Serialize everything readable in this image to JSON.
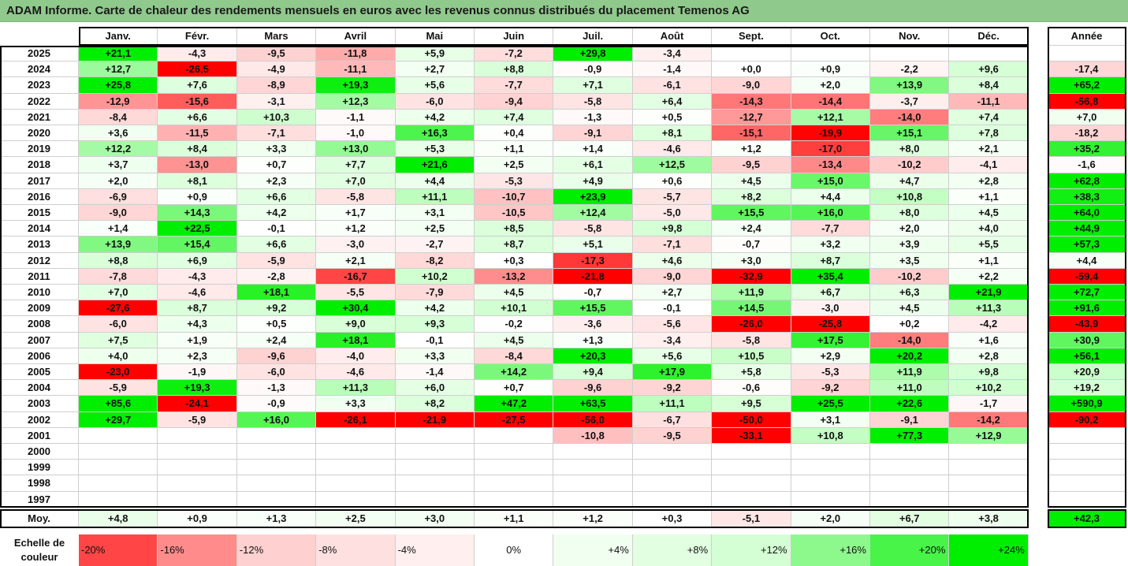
{
  "title": "ADAM Informe. Carte de chaleur des rendements mensuels en euros avec les revenus connus distribués du placement Temenos AG",
  "chart_data": {
    "type": "heatmap",
    "title": "ADAM Informe. Carte de chaleur des rendements mensuels en euros avec les revenus connus distribués du placement Temenos AG",
    "columns": [
      "Janv.",
      "Févr.",
      "Mars",
      "Avril",
      "Mai",
      "Juin",
      "Juil.",
      "Août",
      "Sept.",
      "Oct.",
      "Nov.",
      "Déc."
    ],
    "year_header": "Année",
    "rows": [
      {
        "year": "2025",
        "months": [
          "+21,1",
          "-4,3",
          "-9,5",
          "-11,8",
          "+5,9",
          "-7,2",
          "+29,8",
          "-3,4",
          "",
          "",
          "",
          ""
        ],
        "annual": ""
      },
      {
        "year": "2024",
        "months": [
          "+12,7",
          "-26,5",
          "-4,9",
          "-11,1",
          "+2,7",
          "+8,8",
          "-0,9",
          "-1,4",
          "+0,0",
          "+0,9",
          "-2,2",
          "+9,6"
        ],
        "annual": "-17,4"
      },
      {
        "year": "2023",
        "months": [
          "+25,8",
          "+7,6",
          "-8,9",
          "+19,3",
          "+5,6",
          "-7,7",
          "+7,1",
          "-6,1",
          "-9,0",
          "+2,0",
          "+13,9",
          "+8,4"
        ],
        "annual": "+65,2"
      },
      {
        "year": "2022",
        "months": [
          "-12,9",
          "-15,6",
          "-3,1",
          "+12,3",
          "-6,0",
          "-9,4",
          "-5,8",
          "+6,4",
          "-14,3",
          "-14,4",
          "-3,7",
          "-11,1"
        ],
        "annual": "-56,8"
      },
      {
        "year": "2021",
        "months": [
          "-8,4",
          "+6,6",
          "+10,3",
          "-1,1",
          "+4,2",
          "+7,4",
          "-1,3",
          "+0,5",
          "-12,7",
          "+12,1",
          "-14,0",
          "+7,4"
        ],
        "annual": "+7,0"
      },
      {
        "year": "2020",
        "months": [
          "+3,6",
          "-11,5",
          "-7,1",
          "-1,0",
          "+16,3",
          "+0,4",
          "-9,1",
          "+8,1",
          "-15,1",
          "-19,9",
          "+15,1",
          "+7,8"
        ],
        "annual": "-18,2"
      },
      {
        "year": "2019",
        "months": [
          "+12,2",
          "+8,4",
          "+3,3",
          "+13,0",
          "+5,3",
          "+1,1",
          "+1,4",
          "-4,6",
          "+1,2",
          "-17,0",
          "+8,0",
          "+2,1"
        ],
        "annual": "+35,2"
      },
      {
        "year": "2018",
        "months": [
          "+3,7",
          "-13,0",
          "+0,7",
          "+7,7",
          "+21,6",
          "+2,5",
          "+6,1",
          "+12,5",
          "-9,5",
          "-13,4",
          "-10,2",
          "-4,1"
        ],
        "annual": "-1,6"
      },
      {
        "year": "2017",
        "months": [
          "+2,0",
          "+8,1",
          "+2,3",
          "+7,0",
          "+4,4",
          "-5,3",
          "+4,9",
          "+0,6",
          "+4,5",
          "+15,0",
          "+4,7",
          "+2,8"
        ],
        "annual": "+62,8"
      },
      {
        "year": "2016",
        "months": [
          "-6,9",
          "+0,9",
          "+6,6",
          "-5,8",
          "+11,1",
          "-10,7",
          "+23,9",
          "-5,7",
          "+8,2",
          "+4,4",
          "+10,8",
          "+1,1"
        ],
        "annual": "+38,3"
      },
      {
        "year": "2015",
        "months": [
          "-9,0",
          "+14,3",
          "+4,2",
          "+1,7",
          "+3,1",
          "-10,5",
          "+12,4",
          "-5,0",
          "+15,5",
          "+16,0",
          "+8,0",
          "+4,5"
        ],
        "annual": "+64,0"
      },
      {
        "year": "2014",
        "months": [
          "+1,4",
          "+22,5",
          "-0,1",
          "+1,2",
          "+2,5",
          "+8,5",
          "-5,8",
          "+9,8",
          "+2,4",
          "-7,7",
          "+2,0",
          "+4,0"
        ],
        "annual": "+44,9"
      },
      {
        "year": "2013",
        "months": [
          "+13,9",
          "+15,4",
          "+6,6",
          "-3,0",
          "-2,7",
          "+8,7",
          "+5,1",
          "-7,1",
          "-0,7",
          "+3,2",
          "+3,9",
          "+5,5"
        ],
        "annual": "+57,3"
      },
      {
        "year": "2012",
        "months": [
          "+8,8",
          "+6,9",
          "-5,9",
          "+2,1",
          "-8,2",
          "+0,3",
          "-17,3",
          "+4,6",
          "+3,0",
          "+8,7",
          "+3,5",
          "+1,1"
        ],
        "annual": "+4,4"
      },
      {
        "year": "2011",
        "months": [
          "-7,8",
          "-4,3",
          "-2,8",
          "-16,7",
          "+10,2",
          "-13,2",
          "-21,8",
          "-9,0",
          "-32,9",
          "+35,4",
          "-10,2",
          "+2,2"
        ],
        "annual": "-59,4"
      },
      {
        "year": "2010",
        "months": [
          "+7,0",
          "-4,6",
          "+18,1",
          "-5,5",
          "-7,9",
          "+4,5",
          "-0,7",
          "+2,7",
          "+11,9",
          "+6,7",
          "+6,3",
          "+21,9"
        ],
        "annual": "+72,7"
      },
      {
        "year": "2009",
        "months": [
          "-27,6",
          "+8,7",
          "+9,2",
          "+30,4",
          "+4,2",
          "+10,1",
          "+15,5",
          "-0,1",
          "+14,5",
          "-3,0",
          "+4,5",
          "+11,3"
        ],
        "annual": "+91,6"
      },
      {
        "year": "2008",
        "months": [
          "-6,0",
          "+4,3",
          "+0,5",
          "+9,0",
          "+9,3",
          "-0,2",
          "-3,6",
          "-5,6",
          "-26,0",
          "-25,8",
          "+0,2",
          "-4,2"
        ],
        "annual": "-43,9"
      },
      {
        "year": "2007",
        "months": [
          "+7,5",
          "+1,9",
          "+2,4",
          "+18,1",
          "-0,1",
          "+4,5",
          "+1,3",
          "-3,4",
          "-5,8",
          "+17,5",
          "-14,0",
          "+1,6"
        ],
        "annual": "+30,9"
      },
      {
        "year": "2006",
        "months": [
          "+4,0",
          "+2,3",
          "-9,6",
          "-4,0",
          "+3,3",
          "-8,4",
          "+20,3",
          "+5,6",
          "+10,5",
          "+2,9",
          "+20,2",
          "+2,8"
        ],
        "annual": "+56,1"
      },
      {
        "year": "2005",
        "months": [
          "-23,0",
          "-1,9",
          "-6,0",
          "-4,6",
          "-1,4",
          "+14,2",
          "+9,4",
          "+17,9",
          "+5,8",
          "-5,3",
          "+11,9",
          "+9,8"
        ],
        "annual": "+20,9"
      },
      {
        "year": "2004",
        "months": [
          "-5,9",
          "+19,3",
          "-1,3",
          "+11,3",
          "+6,0",
          "+0,7",
          "-9,6",
          "-9,2",
          "-0,6",
          "-9,2",
          "+11,0",
          "+10,2"
        ],
        "annual": "+19,2"
      },
      {
        "year": "2003",
        "months": [
          "+85,6",
          "-24,1",
          "-0,9",
          "+3,3",
          "+8,2",
          "+47,2",
          "+63,5",
          "+11,1",
          "+9,5",
          "+25,5",
          "+22,6",
          "-1,7"
        ],
        "annual": "+590,9"
      },
      {
        "year": "2002",
        "months": [
          "+29,7",
          "-5,9",
          "+16,0",
          "-26,1",
          "-21,9",
          "-27,5",
          "-56,0",
          "-6,7",
          "-50,0",
          "+3,1",
          "-9,1",
          "-14,2"
        ],
        "annual": "-90,2"
      },
      {
        "year": "2001",
        "months": [
          "",
          "",
          "",
          "",
          "",
          "",
          "-10,8",
          "-9,5",
          "-33,1",
          "+10,8",
          "+77,3",
          "+12,9"
        ],
        "annual": ""
      },
      {
        "year": "2000",
        "months": [
          "",
          "",
          "",
          "",
          "",
          "",
          "",
          "",
          "",
          "",
          "",
          ""
        ],
        "annual": ""
      },
      {
        "year": "1999",
        "months": [
          "",
          "",
          "",
          "",
          "",
          "",
          "",
          "",
          "",
          "",
          "",
          ""
        ],
        "annual": ""
      },
      {
        "year": "1998",
        "months": [
          "",
          "",
          "",
          "",
          "",
          "",
          "",
          "",
          "",
          "",
          "",
          ""
        ],
        "annual": ""
      },
      {
        "year": "1997",
        "months": [
          "",
          "",
          "",
          "",
          "",
          "",
          "",
          "",
          "",
          "",
          "",
          ""
        ],
        "annual": ""
      }
    ],
    "average": {
      "label": "Moy.",
      "months": [
        "+4,8",
        "+0,9",
        "+1,3",
        "+2,5",
        "+3,0",
        "+1,1",
        "+1,2",
        "+0,3",
        "-5,1",
        "+2,0",
        "+6,7",
        "+3,8"
      ],
      "annual": "+42,3"
    },
    "scale": {
      "label": "Echelle de couleur",
      "steps": [
        "-20%",
        "-16%",
        "-12%",
        "-8%",
        "-4%",
        "0%",
        "+4%",
        "+8%",
        "+12%",
        "+16%",
        "+20%",
        "+24%"
      ]
    },
    "colors": {
      "neg_max": "#ff0000",
      "neg_mid": "#ff6b6b",
      "neg_low": "#ffd0d0",
      "zero": "#ffffff",
      "pos_low": "#d4ffd4",
      "pos_mid": "#8cf78c",
      "pos_max": "#00ee00",
      "title_bg": "#8fc98b"
    }
  }
}
